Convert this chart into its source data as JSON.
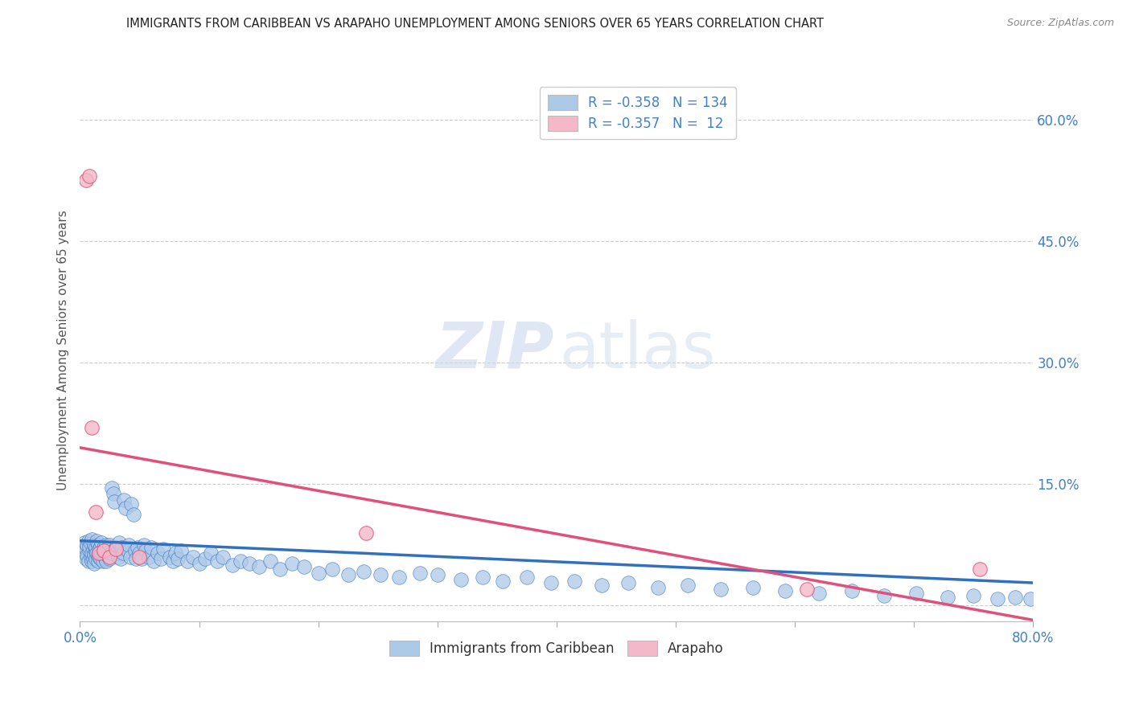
{
  "title": "IMMIGRANTS FROM CARIBBEAN VS ARAPAHO UNEMPLOYMENT AMONG SENIORS OVER 65 YEARS CORRELATION CHART",
  "source": "Source: ZipAtlas.com",
  "ylabel": "Unemployment Among Seniors over 65 years",
  "xlim": [
    0.0,
    0.8
  ],
  "ylim": [
    -0.02,
    0.65
  ],
  "blue_R": -0.358,
  "blue_N": 134,
  "pink_R": -0.357,
  "pink_N": 12,
  "blue_color": "#adc9e8",
  "pink_color": "#f5b8c8",
  "blue_line_color": "#3070c0",
  "pink_line_color": "#e0507a",
  "blue_scatter_x": [
    0.002,
    0.003,
    0.004,
    0.004,
    0.005,
    0.005,
    0.006,
    0.006,
    0.007,
    0.007,
    0.008,
    0.008,
    0.009,
    0.009,
    0.01,
    0.01,
    0.01,
    0.011,
    0.011,
    0.012,
    0.012,
    0.012,
    0.013,
    0.013,
    0.013,
    0.014,
    0.014,
    0.015,
    0.015,
    0.015,
    0.016,
    0.016,
    0.017,
    0.017,
    0.018,
    0.018,
    0.019,
    0.019,
    0.02,
    0.02,
    0.021,
    0.021,
    0.022,
    0.022,
    0.023,
    0.023,
    0.024,
    0.025,
    0.025,
    0.026,
    0.027,
    0.028,
    0.029,
    0.03,
    0.031,
    0.032,
    0.033,
    0.034,
    0.035,
    0.036,
    0.037,
    0.038,
    0.04,
    0.041,
    0.042,
    0.043,
    0.045,
    0.046,
    0.047,
    0.048,
    0.05,
    0.052,
    0.054,
    0.055,
    0.058,
    0.06,
    0.062,
    0.065,
    0.068,
    0.07,
    0.075,
    0.078,
    0.08,
    0.082,
    0.085,
    0.09,
    0.095,
    0.1,
    0.105,
    0.11,
    0.115,
    0.12,
    0.128,
    0.135,
    0.142,
    0.15,
    0.16,
    0.168,
    0.178,
    0.188,
    0.2,
    0.212,
    0.225,
    0.238,
    0.252,
    0.268,
    0.285,
    0.3,
    0.32,
    0.338,
    0.355,
    0.375,
    0.395,
    0.415,
    0.438,
    0.46,
    0.485,
    0.51,
    0.538,
    0.565,
    0.592,
    0.62,
    0.648,
    0.675,
    0.702,
    0.728,
    0.75,
    0.77,
    0.785,
    0.798,
    0.808,
    0.815,
    0.82,
    0.825
  ],
  "blue_scatter_y": [
    0.068,
    0.072,
    0.065,
    0.078,
    0.07,
    0.058,
    0.075,
    0.062,
    0.08,
    0.055,
    0.068,
    0.073,
    0.06,
    0.077,
    0.065,
    0.082,
    0.055,
    0.07,
    0.058,
    0.075,
    0.063,
    0.052,
    0.068,
    0.072,
    0.058,
    0.065,
    0.08,
    0.062,
    0.075,
    0.055,
    0.07,
    0.06,
    0.073,
    0.058,
    0.065,
    0.078,
    0.055,
    0.068,
    0.062,
    0.072,
    0.058,
    0.065,
    0.075,
    0.055,
    0.068,
    0.062,
    0.07,
    0.058,
    0.075,
    0.065,
    0.145,
    0.138,
    0.128,
    0.072,
    0.065,
    0.06,
    0.078,
    0.058,
    0.072,
    0.065,
    0.13,
    0.12,
    0.068,
    0.075,
    0.06,
    0.125,
    0.112,
    0.068,
    0.058,
    0.072,
    0.065,
    0.058,
    0.075,
    0.068,
    0.06,
    0.072,
    0.055,
    0.065,
    0.058,
    0.07,
    0.06,
    0.055,
    0.065,
    0.058,
    0.068,
    0.055,
    0.06,
    0.052,
    0.058,
    0.065,
    0.055,
    0.06,
    0.05,
    0.055,
    0.052,
    0.048,
    0.055,
    0.045,
    0.052,
    0.048,
    0.04,
    0.045,
    0.038,
    0.042,
    0.038,
    0.035,
    0.04,
    0.038,
    0.032,
    0.035,
    0.03,
    0.035,
    0.028,
    0.03,
    0.025,
    0.028,
    0.022,
    0.025,
    0.02,
    0.022,
    0.018,
    0.015,
    0.018,
    0.012,
    0.015,
    0.01,
    0.012,
    0.008,
    0.01,
    0.008,
    0.005,
    0.008,
    0.005,
    0.003
  ],
  "pink_scatter_x": [
    0.005,
    0.008,
    0.01,
    0.013,
    0.016,
    0.02,
    0.025,
    0.03,
    0.05,
    0.24,
    0.61,
    0.755
  ],
  "pink_scatter_y": [
    0.525,
    0.53,
    0.22,
    0.115,
    0.065,
    0.068,
    0.06,
    0.07,
    0.06,
    0.09,
    0.02,
    0.045
  ],
  "blue_trendline_x": [
    0.0,
    0.8
  ],
  "blue_trendline_y": [
    0.08,
    0.028
  ],
  "pink_trendline_x": [
    0.0,
    0.8
  ],
  "pink_trendline_y": [
    0.195,
    -0.018
  ],
  "watermark_zip": "ZIP",
  "watermark_atlas": "atlas",
  "background_color": "#ffffff",
  "grid_color": "#cccccc",
  "right_label_color": "#4080c8",
  "axis_label_color": "#555555"
}
